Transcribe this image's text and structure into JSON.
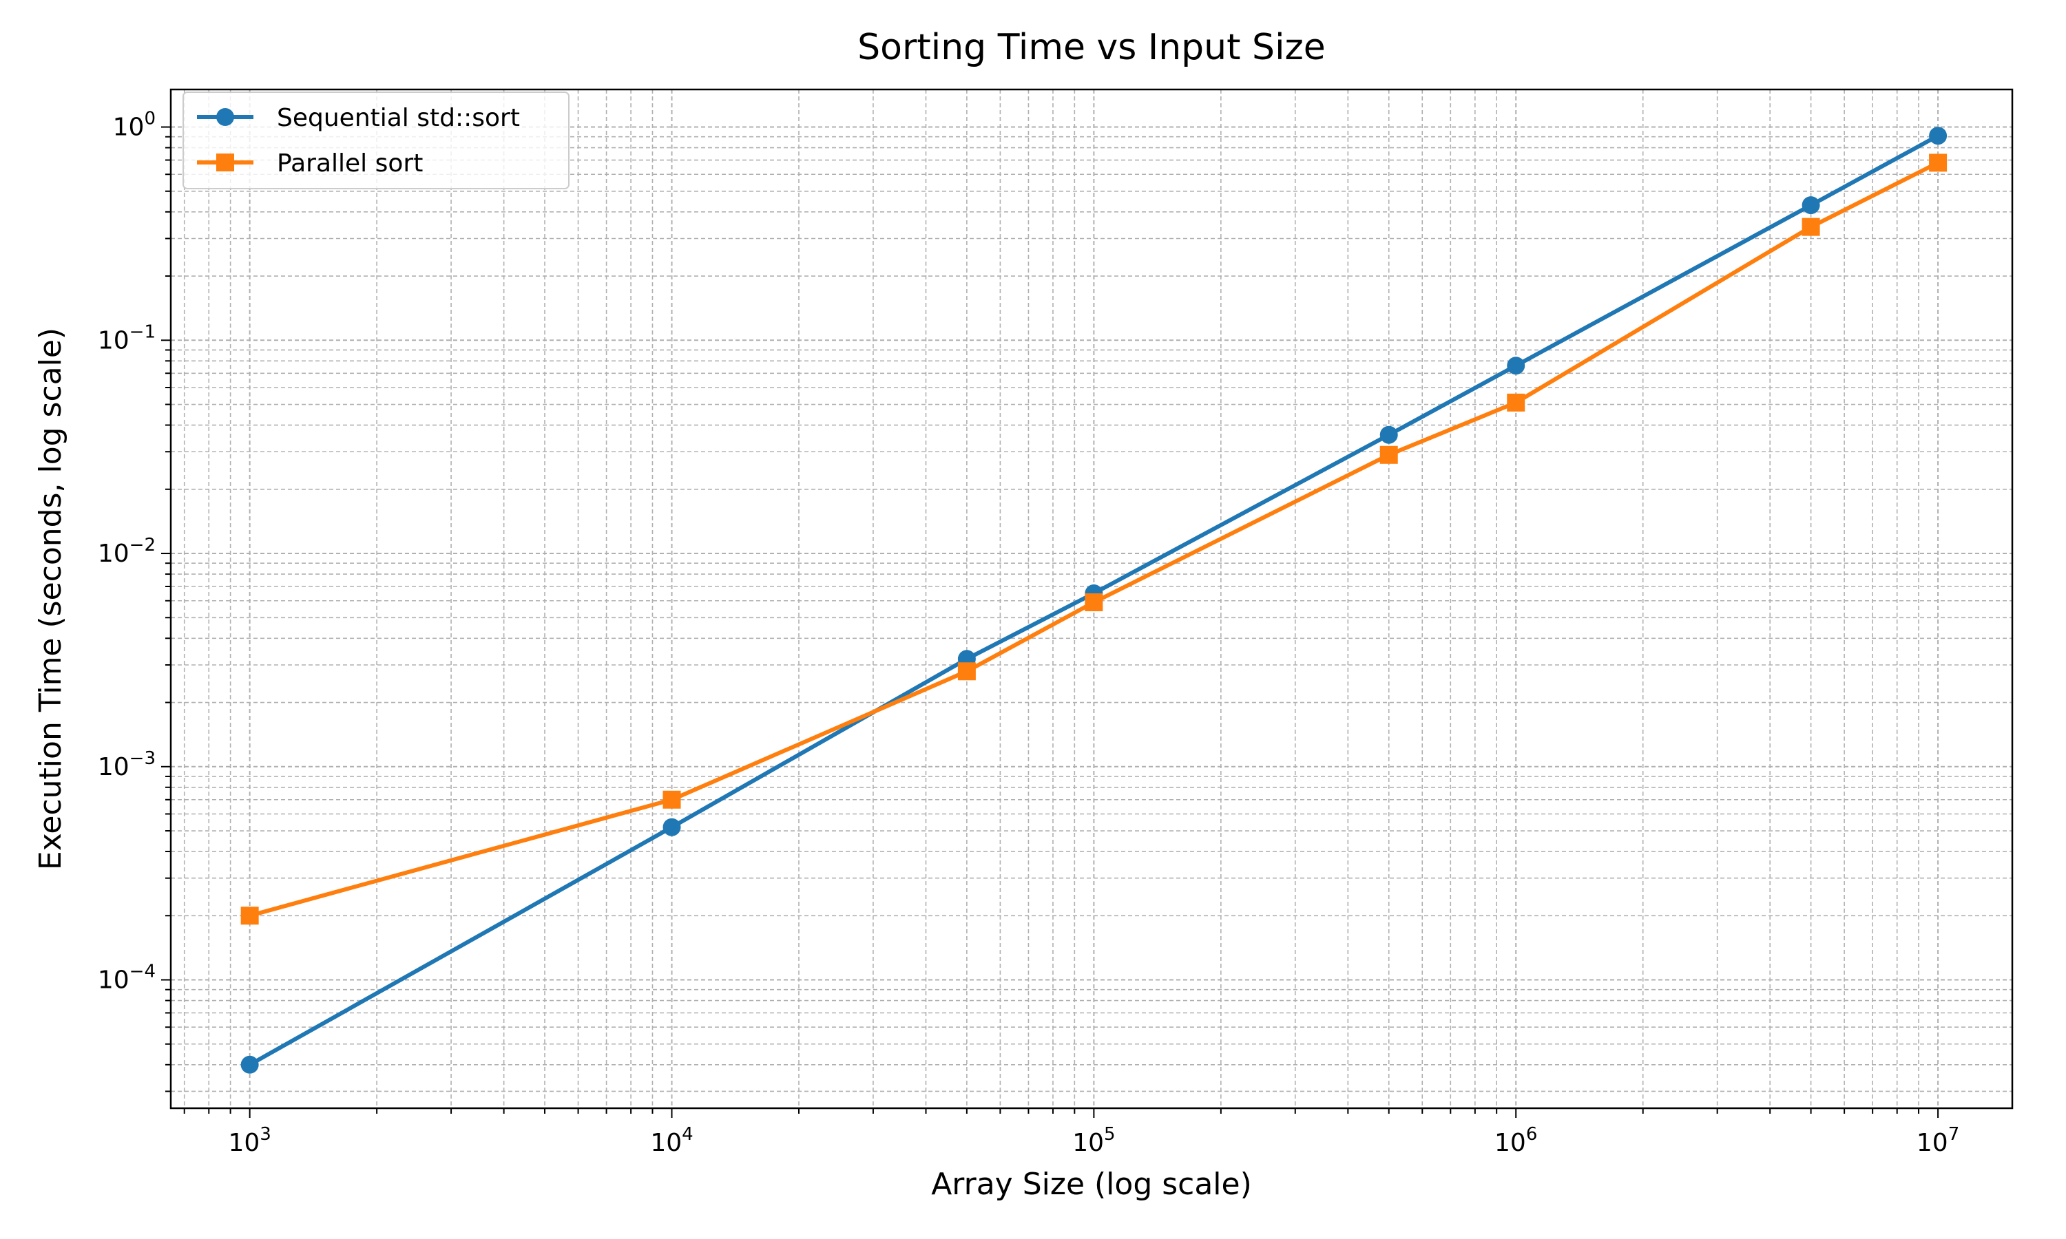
{
  "chart_data": {
    "type": "line",
    "title": "Sorting Time vs Input Size",
    "xlabel": "Array Size (log scale)",
    "ylabel": "Execution Time (seconds, log scale)",
    "xscale": "log",
    "yscale": "log",
    "xlim": [
      650,
      15000000
    ],
    "ylim": [
      2.5e-05,
      1.5
    ],
    "grid": "both (major and minor, dashed)",
    "legend_position": "top-left",
    "x_ticks": [
      {
        "value": 1000,
        "base": "10",
        "exp": "3"
      },
      {
        "value": 10000,
        "base": "10",
        "exp": "4"
      },
      {
        "value": 100000,
        "base": "10",
        "exp": "5"
      },
      {
        "value": 1000000,
        "base": "10",
        "exp": "6"
      },
      {
        "value": 10000000,
        "base": "10",
        "exp": "7"
      }
    ],
    "y_ticks": [
      {
        "value": 0.0001,
        "base": "10",
        "exp": "−4"
      },
      {
        "value": 0.001,
        "base": "10",
        "exp": "−3"
      },
      {
        "value": 0.01,
        "base": "10",
        "exp": "−2"
      },
      {
        "value": 0.1,
        "base": "10",
        "exp": "−1"
      },
      {
        "value": 1,
        "base": "10",
        "exp": "0"
      }
    ],
    "x": [
      1000,
      10000,
      50000,
      100000,
      500000,
      1000000,
      5000000,
      10000000
    ],
    "series": [
      {
        "name": "Sequential std::sort",
        "color": "#1f77b4",
        "marker": "circle",
        "values": [
          4e-05,
          0.00052,
          0.0032,
          0.0065,
          0.036,
          0.076,
          0.43,
          0.91
        ]
      },
      {
        "name": "Parallel sort",
        "color": "#ff7f0e",
        "marker": "square",
        "values": [
          0.0002,
          0.0007,
          0.0028,
          0.0059,
          0.029,
          0.051,
          0.34,
          0.68
        ]
      }
    ]
  }
}
